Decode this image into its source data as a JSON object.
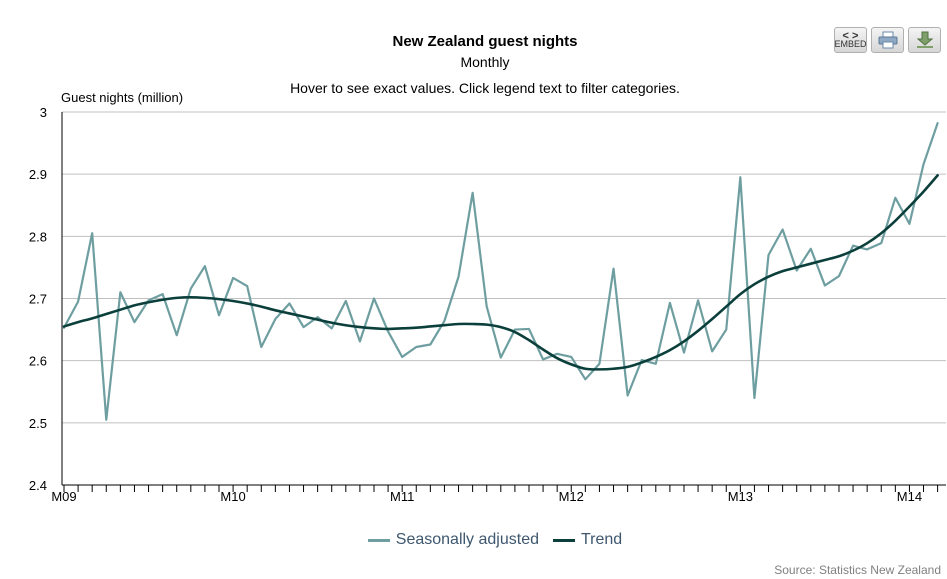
{
  "toolbar": {
    "embed_label_top": "< >",
    "embed_label_bottom": "EMBED"
  },
  "chart_data": {
    "type": "line",
    "title": "New Zealand guest nights",
    "subtitle": "Monthly",
    "instructions": "Hover to see exact values. Click legend text to filter categories.",
    "ylabel": "Guest nights (million)",
    "source": "Source: Statistics New Zealand",
    "ylim": [
      2.4,
      3.0
    ],
    "yticks": [
      "3",
      "2.9",
      "2.8",
      "2.7",
      "2.6",
      "2.5",
      "2.4"
    ],
    "ytick_values": [
      3.0,
      2.9,
      2.8,
      2.7,
      2.6,
      2.5,
      2.4
    ],
    "xtick_labels": [
      "M09",
      "M10",
      "M11",
      "M12",
      "M13",
      "M14"
    ],
    "xtick_indices": [
      0,
      12,
      24,
      36,
      48,
      60
    ],
    "x_count": 63,
    "grid": true,
    "legend_position": "bottom",
    "series": [
      {
        "name": "Seasonally adjusted",
        "color": "#6e9ea0",
        "values": [
          2.653,
          2.695,
          2.805,
          2.505,
          2.71,
          2.662,
          2.697,
          2.707,
          2.641,
          2.716,
          2.752,
          2.673,
          2.733,
          2.72,
          2.622,
          2.667,
          2.692,
          2.654,
          2.67,
          2.652,
          2.696,
          2.631,
          2.7,
          2.647,
          2.606,
          2.622,
          2.626,
          2.664,
          2.735,
          2.87,
          2.687,
          2.605,
          2.65,
          2.651,
          2.602,
          2.611,
          2.606,
          2.57,
          2.595,
          2.748,
          2.544,
          2.601,
          2.595,
          2.693,
          2.613,
          2.697,
          2.615,
          2.65,
          2.895,
          2.54,
          2.77,
          2.811,
          2.745,
          2.78,
          2.721,
          2.736,
          2.785,
          2.779,
          2.789,
          2.862,
          2.82,
          2.916,
          2.982
        ]
      },
      {
        "name": "Trend",
        "color": "#0b3f3b",
        "values": [
          2.655,
          2.662,
          2.668,
          2.675,
          2.682,
          2.689,
          2.694,
          2.698,
          2.701,
          2.702,
          2.701,
          2.699,
          2.696,
          2.692,
          2.687,
          2.681,
          2.676,
          2.671,
          2.666,
          2.661,
          2.657,
          2.654,
          2.652,
          2.651,
          2.652,
          2.653,
          2.655,
          2.657,
          2.659,
          2.659,
          2.658,
          2.654,
          2.646,
          2.633,
          2.618,
          2.604,
          2.594,
          2.587,
          2.586,
          2.587,
          2.59,
          2.597,
          2.606,
          2.617,
          2.631,
          2.648,
          2.667,
          2.687,
          2.707,
          2.723,
          2.735,
          2.744,
          2.75,
          2.756,
          2.762,
          2.768,
          2.777,
          2.789,
          2.805,
          2.825,
          2.848,
          2.872,
          2.898
        ]
      }
    ]
  }
}
